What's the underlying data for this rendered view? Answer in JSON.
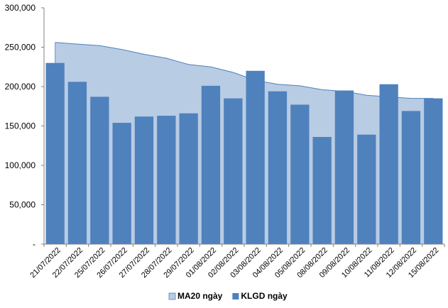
{
  "chart_data": {
    "type": "bar",
    "categories": [
      "21/07/2022",
      "22/07/2022",
      "25/07/2022",
      "26/07/2022",
      "27/07/2022",
      "28/07/2022",
      "29/07/2022",
      "01/08/2022",
      "02/08/2022",
      "03/08/2022",
      "04/08/2022",
      "05/08/2022",
      "08/08/2022",
      "09/08/2022",
      "10/08/2022",
      "11/08/2022",
      "12/08/2022",
      "15/08/2022"
    ],
    "series": [
      {
        "name": "MA20 ngày",
        "kind": "area",
        "color": "#b8cce4",
        "stroke": "#4f81bd",
        "values": [
          256000,
          254000,
          252000,
          247000,
          241000,
          236000,
          228000,
          225000,
          218000,
          208000,
          203000,
          201000,
          196000,
          194000,
          189000,
          187000,
          185000,
          185000
        ]
      },
      {
        "name": "KLGD ngày",
        "kind": "bar",
        "color": "#4f81bd",
        "values": [
          230000,
          206000,
          187000,
          154000,
          162000,
          163000,
          166000,
          201000,
          185000,
          220000,
          194000,
          177000,
          136000,
          195000,
          139000,
          203000,
          169000,
          185000
        ]
      }
    ],
    "yticks": [
      "-",
      "50,000",
      "100,000",
      "150,000",
      "200,000",
      "250,000",
      "300,000"
    ],
    "ylim": [
      0,
      300000
    ],
    "grid": false,
    "legend_position": "bottom"
  }
}
